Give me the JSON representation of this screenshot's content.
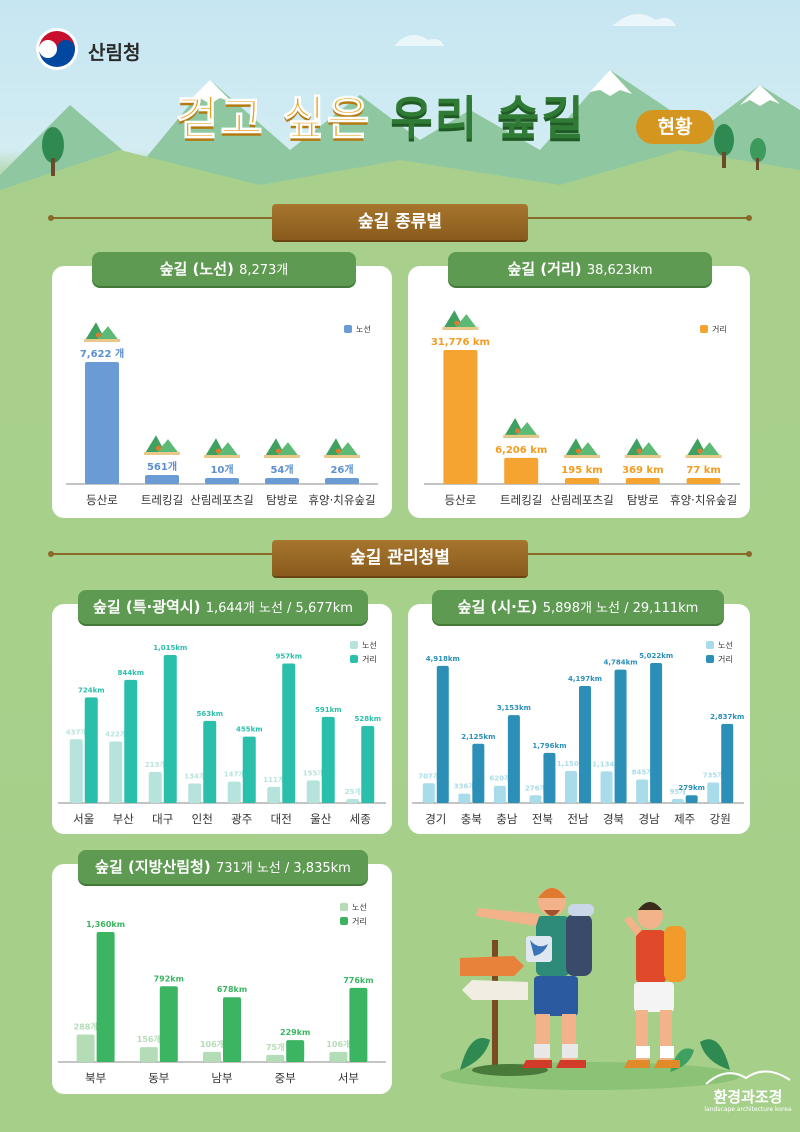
{
  "header": {
    "org_name": "산림청",
    "title_part1": "걷고 싶은",
    "title_part2": "우리 숲길",
    "title_badge": "현황"
  },
  "sections": {
    "type_title": "숲길 종류별",
    "agency_title": "숲길 관리청별"
  },
  "cards": {
    "routes": {
      "title": "숲길 (노선)",
      "sub": "8,273개"
    },
    "distance": {
      "title": "숲길 (거리)",
      "sub": "38,623km"
    },
    "metro": {
      "title": "숲길 (특·광역시)",
      "sub": "1,644개 노선 / 5,677km"
    },
    "province": {
      "title": "숲길 (시·도)",
      "sub": "5,898개 노선 / 29,111km"
    },
    "regional": {
      "title": "숲길 (지방산림청)",
      "sub": "731개 노선 / 3,835km"
    }
  },
  "footer": {
    "brand": "환경과조경",
    "brand_sub": "landscape architecture korea"
  },
  "colors": {
    "route_bar": "#6a9bd4",
    "route_label": "#5b8fcf",
    "distance_bar": "#f6a431",
    "distance_label": "#f39c1e",
    "metro_route": "#b6e3dc",
    "metro_dist": "#2abfaa",
    "province_route": "#a9dcea",
    "province_dist": "#2b8fb8",
    "regional_route": "#b4dcb6",
    "regional_dist": "#3cb562"
  },
  "chart_data": [
    {
      "id": "routes",
      "type": "bar",
      "categories": [
        "등산로",
        "트레킹길",
        "산림레포츠길",
        "탐방로",
        "휴양·치유숲길"
      ],
      "series": [
        {
          "name": "노선",
          "values": [
            7622,
            561,
            10,
            54,
            26
          ],
          "labels": [
            "7,622 개",
            "561개",
            "10개",
            "54개",
            "26개"
          ]
        }
      ],
      "legend": "top-right"
    },
    {
      "id": "distance",
      "type": "bar",
      "categories": [
        "등산로",
        "트레킹길",
        "산림레포츠길",
        "탐방로",
        "휴양·치유숲길"
      ],
      "series": [
        {
          "name": "거리",
          "values": [
            31776,
            6206,
            195,
            369,
            77
          ],
          "labels": [
            "31,776 km",
            "6,206 km",
            "195 km",
            "369 km",
            "77 km"
          ]
        }
      ],
      "legend": "top-right"
    },
    {
      "id": "metro",
      "type": "bar",
      "categories": [
        "서울",
        "부산",
        "대구",
        "인천",
        "광주",
        "대전",
        "울산",
        "세종"
      ],
      "series": [
        {
          "name": "노선",
          "values": [
            437,
            422,
            213,
            134,
            147,
            111,
            155,
            25
          ],
          "labels": [
            "437개",
            "422개",
            "213개",
            "134개",
            "147개",
            "111개",
            "155개",
            "25개"
          ]
        },
        {
          "name": "거리",
          "values": [
            724,
            844,
            1015,
            563,
            455,
            957,
            591,
            528
          ],
          "labels": [
            "724km",
            "844km",
            "1,015km",
            "563km",
            "455km",
            "957km",
            "591km",
            "528km"
          ]
        }
      ],
      "legend": "top-right"
    },
    {
      "id": "province",
      "type": "bar",
      "categories": [
        "경기",
        "충북",
        "충남",
        "전북",
        "전남",
        "경북",
        "경남",
        "제주",
        "강원"
      ],
      "series": [
        {
          "name": "노선",
          "values": [
            707,
            336,
            620,
            276,
            1150,
            1134,
            845,
            95,
            735
          ],
          "labels": [
            "707개",
            "336개",
            "620개",
            "276개",
            "1,150개",
            "1,134개",
            "845개",
            "95개",
            "735개"
          ]
        },
        {
          "name": "거리",
          "values": [
            4918,
            2125,
            3153,
            1796,
            4197,
            4784,
            5022,
            279,
            2837
          ],
          "labels": [
            "4,918km",
            "2,125km",
            "3,153km",
            "1,796km",
            "4,197km",
            "4,784km",
            "5,022km",
            "279km",
            "2,837km"
          ]
        }
      ],
      "legend": "top-right"
    },
    {
      "id": "regional",
      "type": "bar",
      "categories": [
        "북부",
        "동부",
        "남부",
        "중부",
        "서부"
      ],
      "series": [
        {
          "name": "노선",
          "values": [
            288,
            156,
            106,
            75,
            106
          ],
          "labels": [
            "288개",
            "156개",
            "106개",
            "75개",
            "106개"
          ]
        },
        {
          "name": "거리",
          "values": [
            1360,
            792,
            678,
            229,
            776
          ],
          "labels": [
            "1,360km",
            "792km",
            "678km",
            "229km",
            "776km"
          ]
        }
      ],
      "legend": "top-right"
    }
  ]
}
